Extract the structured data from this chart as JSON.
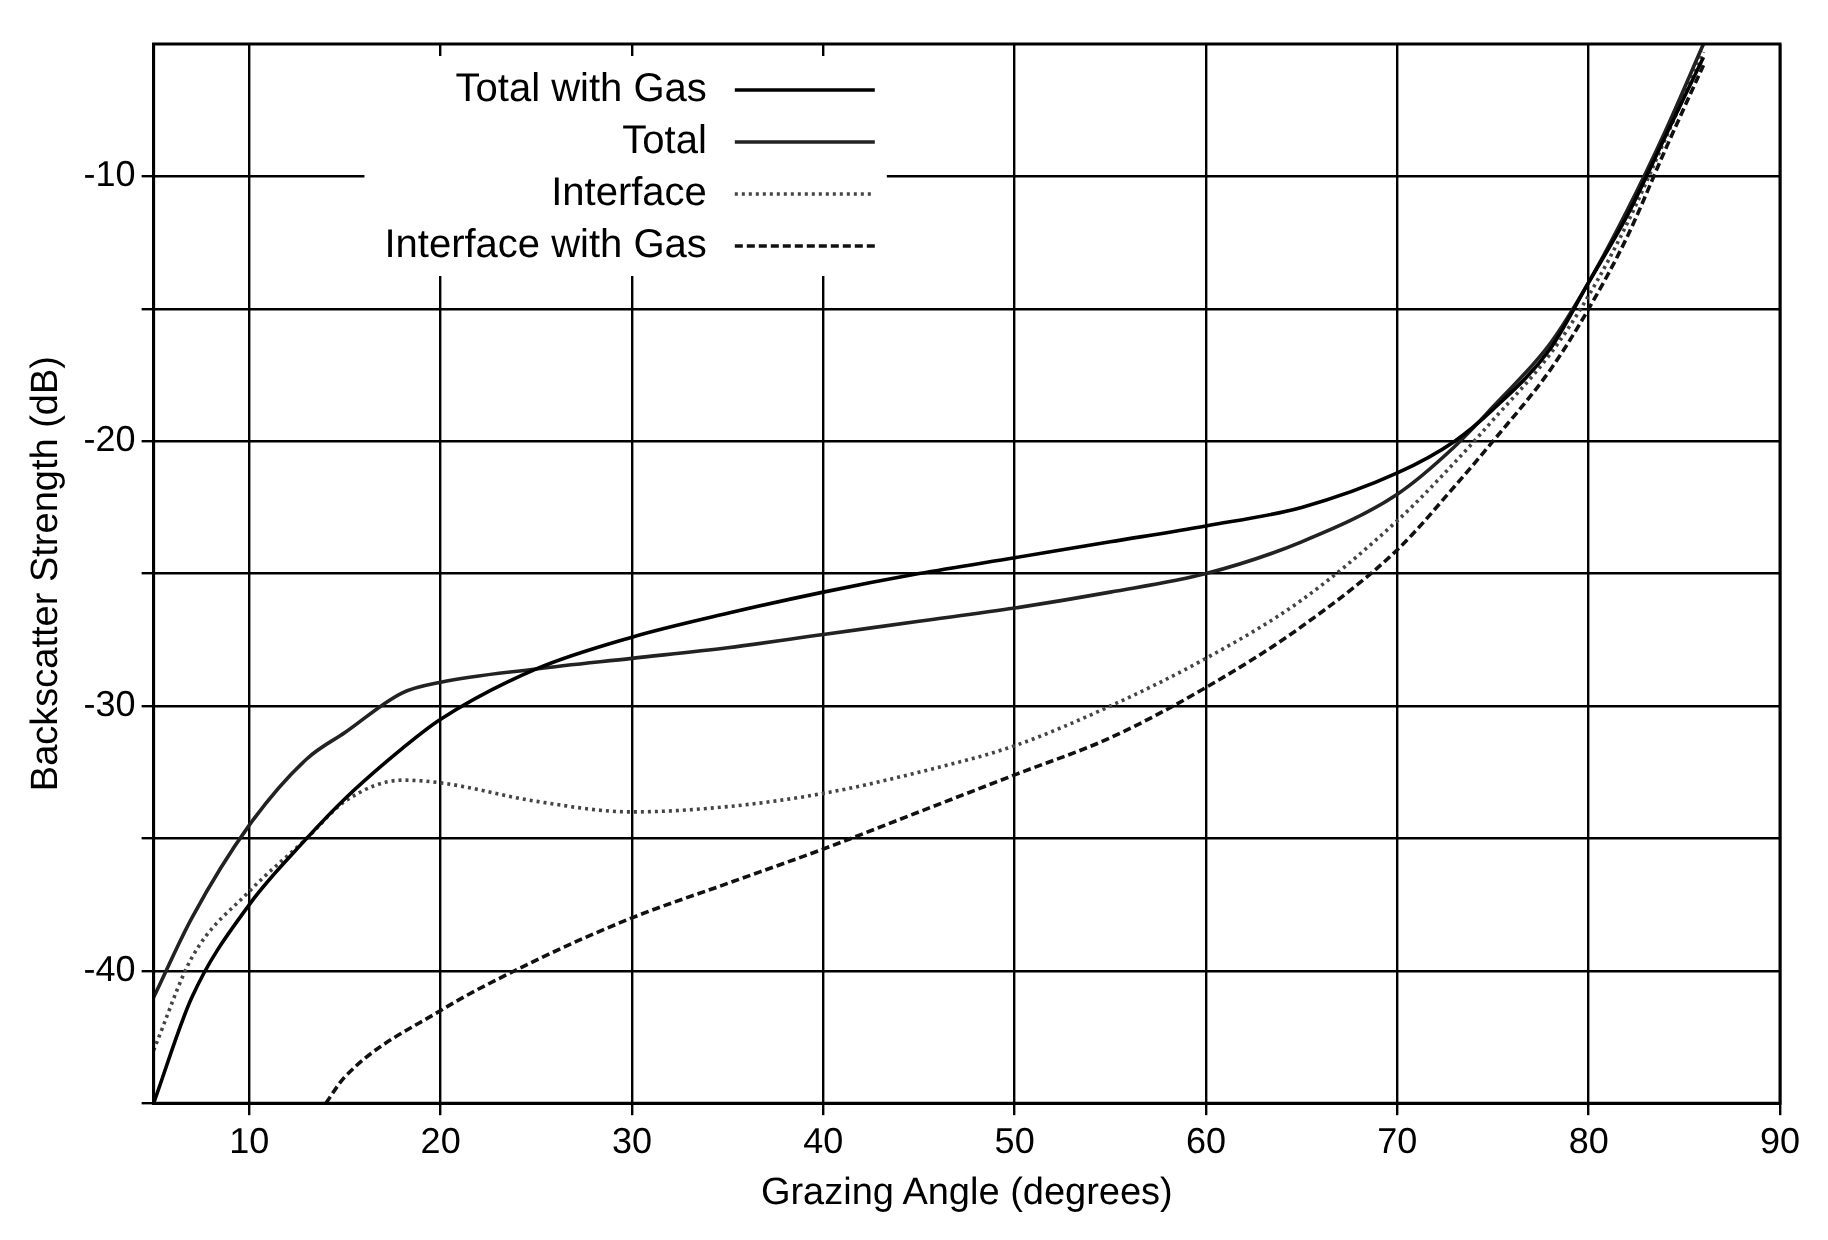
{
  "chart_data": {
    "type": "line",
    "xlabel": "Grazing Angle (degrees)",
    "ylabel": "Backscatter Strength (dB)",
    "xlim": [
      5,
      90
    ],
    "xticks": [
      10,
      20,
      30,
      40,
      50,
      60,
      70,
      80,
      90
    ],
    "ylim": [
      -45,
      -5
    ],
    "yticks": [
      {
        "value": -45,
        "label": null
      },
      {
        "value": -40,
        "label": "-40"
      },
      {
        "value": -35,
        "label": null
      },
      {
        "value": -30,
        "label": "-30"
      },
      {
        "value": -25,
        "label": null
      },
      {
        "value": -20,
        "label": "-20"
      },
      {
        "value": -15,
        "label": null
      },
      {
        "value": -10,
        "label": "-10"
      }
    ],
    "grid": true,
    "legend": "top",
    "marker": "none",
    "series": [
      {
        "name": "Total with Gas",
        "color": "#000000",
        "line_style": "solid",
        "x": [
          5,
          7,
          10,
          13,
          15,
          18,
          20,
          25,
          30,
          35,
          40,
          45,
          50,
          55,
          60,
          65,
          70,
          73,
          75,
          78,
          80,
          82,
          84,
          86
        ],
        "values": [
          -45,
          -41,
          -37.5,
          -35,
          -33.5,
          -31.6,
          -30.5,
          -28.6,
          -27.4,
          -26.5,
          -25.7,
          -25,
          -24.4,
          -23.8,
          -23.2,
          -22.5,
          -21.2,
          -20,
          -18.8,
          -16.5,
          -14,
          -11.5,
          -8.5,
          -5.5
        ]
      },
      {
        "name": "Total",
        "color": "#222222",
        "line_style": "solid",
        "x": [
          5,
          7,
          10,
          13,
          15,
          18,
          20,
          25,
          30,
          35,
          40,
          45,
          50,
          55,
          60,
          65,
          70,
          73,
          75,
          78,
          80,
          82,
          84,
          86
        ],
        "values": [
          -41,
          -38,
          -34.5,
          -32,
          -31,
          -29.5,
          -29.1,
          -28.6,
          -28.2,
          -27.8,
          -27.3,
          -26.8,
          -26.3,
          -25.7,
          -25,
          -23.8,
          -22,
          -20.2,
          -18.7,
          -16.3,
          -14,
          -11.3,
          -8.3,
          -5
        ]
      },
      {
        "name": "Interface",
        "color": "#444444",
        "line_style": "dotted",
        "x": [
          5,
          7,
          10,
          13,
          15,
          18,
          20,
          25,
          30,
          35,
          40,
          45,
          50,
          55,
          60,
          65,
          70,
          73,
          75,
          78,
          80,
          82,
          84,
          86
        ],
        "values": [
          -43,
          -39.5,
          -37,
          -35,
          -33.6,
          -32.8,
          -32.9,
          -33.6,
          -34,
          -33.8,
          -33.3,
          -32.5,
          -31.5,
          -30,
          -28.2,
          -26,
          -23,
          -20.8,
          -19.2,
          -16.7,
          -14.5,
          -11.8,
          -8.6,
          -5.3
        ]
      },
      {
        "name": "Interface with Gas",
        "color": "#111111",
        "line_style": "dashed",
        "x": [
          14,
          15,
          20,
          25,
          30,
          35,
          40,
          45,
          50,
          55,
          60,
          65,
          70,
          73,
          75,
          78,
          80,
          82,
          84,
          86
        ],
        "values": [
          -45,
          -44,
          -41.5,
          -39.6,
          -38,
          -36.7,
          -35.4,
          -34,
          -32.6,
          -31.2,
          -29.3,
          -27,
          -24.1,
          -21.7,
          -20,
          -17.3,
          -15,
          -12.3,
          -9,
          -5.8
        ]
      }
    ]
  }
}
